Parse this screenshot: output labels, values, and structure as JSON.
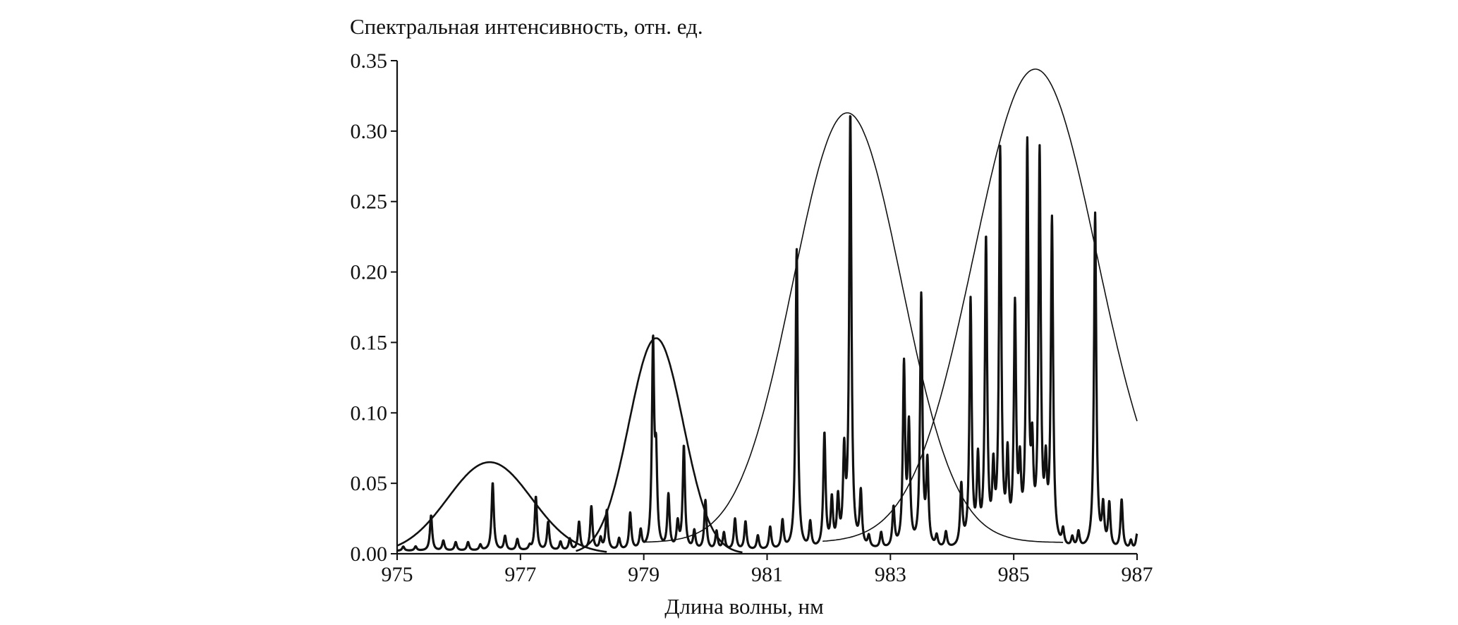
{
  "chart_data": {
    "type": "line",
    "title": "",
    "xlabel": "Длина волны, нм",
    "ylabel": "Спектральная интенсивность, отн. ед.",
    "xlim": [
      975,
      987
    ],
    "ylim": [
      0,
      0.35
    ],
    "xticks": [
      975,
      977,
      979,
      981,
      983,
      985,
      987
    ],
    "xtick_labels": [
      "975",
      "977",
      "979",
      "981",
      "983",
      "985",
      "987"
    ],
    "yticks": [
      0,
      0.05,
      0.1,
      0.15,
      0.2,
      0.25,
      0.3,
      0.35
    ],
    "ytick_labels": [
      "0.00",
      "0.05",
      "0.10",
      "0.15",
      "0.20",
      "0.25",
      "0.30",
      "0.35"
    ],
    "grid": false,
    "legend": "none",
    "series": [
      {
        "kind": "envelope",
        "style": "thick",
        "peak_wavelength": 976.5,
        "peak_value": 0.065,
        "sigma": 0.68,
        "x_range": [
          975,
          978.4
        ]
      },
      {
        "kind": "envelope",
        "style": "thick",
        "peak_wavelength": 979.2,
        "peak_value": 0.153,
        "sigma": 0.44,
        "x_range": [
          977.9,
          980.6
        ]
      },
      {
        "kind": "envelope",
        "style": "thin",
        "peak_wavelength": 982.3,
        "peak_value": 0.313,
        "sigma": 0.88,
        "baseline": 0.008,
        "x_range": [
          979.0,
          985.8
        ]
      },
      {
        "kind": "envelope",
        "style": "thin",
        "peak_wavelength": 985.35,
        "peak_value": 0.344,
        "sigma": 1.0,
        "baseline": 0.008,
        "x_range": [
          981.9,
          987.0
        ]
      },
      {
        "kind": "spectrum",
        "style": "bold",
        "baseline": 0.002,
        "lines": [
          [
            975.1,
            0.005
          ],
          [
            975.3,
            0.005
          ],
          [
            975.55,
            0.027
          ],
          [
            975.75,
            0.009
          ],
          [
            975.95,
            0.008
          ],
          [
            976.15,
            0.008
          ],
          [
            976.35,
            0.006
          ],
          [
            976.55,
            0.05
          ],
          [
            976.75,
            0.012
          ],
          [
            976.95,
            0.01
          ],
          [
            977.15,
            0.005
          ],
          [
            977.25,
            0.04
          ],
          [
            977.45,
            0.022
          ],
          [
            977.65,
            0.008
          ],
          [
            977.8,
            0.01
          ],
          [
            977.95,
            0.022
          ],
          [
            978.15,
            0.033
          ],
          [
            978.3,
            0.01
          ],
          [
            978.4,
            0.03
          ],
          [
            978.6,
            0.01
          ],
          [
            978.78,
            0.028
          ],
          [
            978.95,
            0.015
          ],
          [
            979.15,
            0.145
          ],
          [
            979.2,
            0.06
          ],
          [
            979.4,
            0.04
          ],
          [
            979.55,
            0.02
          ],
          [
            979.65,
            0.075
          ],
          [
            979.82,
            0.015
          ],
          [
            980.0,
            0.037
          ],
          [
            980.18,
            0.015
          ],
          [
            980.3,
            0.014
          ],
          [
            980.48,
            0.024
          ],
          [
            980.65,
            0.022
          ],
          [
            980.85,
            0.012
          ],
          [
            981.05,
            0.018
          ],
          [
            981.25,
            0.022
          ],
          [
            981.48,
            0.215
          ],
          [
            981.7,
            0.02
          ],
          [
            981.93,
            0.083
          ],
          [
            982.05,
            0.035
          ],
          [
            982.15,
            0.035
          ],
          [
            982.25,
            0.065
          ],
          [
            982.35,
            0.308
          ],
          [
            982.52,
            0.04
          ],
          [
            982.65,
            0.01
          ],
          [
            982.85,
            0.013
          ],
          [
            983.05,
            0.03
          ],
          [
            983.22,
            0.13
          ],
          [
            983.3,
            0.085
          ],
          [
            983.5,
            0.18
          ],
          [
            983.6,
            0.06
          ],
          [
            983.75,
            0.01
          ],
          [
            983.9,
            0.013
          ],
          [
            984.15,
            0.045
          ],
          [
            984.3,
            0.176
          ],
          [
            984.42,
            0.06
          ],
          [
            984.55,
            0.218
          ],
          [
            984.67,
            0.05
          ],
          [
            984.78,
            0.28
          ],
          [
            984.9,
            0.06
          ],
          [
            985.02,
            0.168
          ],
          [
            985.1,
            0.05
          ],
          [
            985.22,
            0.282
          ],
          [
            985.3,
            0.06
          ],
          [
            985.42,
            0.278
          ],
          [
            985.52,
            0.05
          ],
          [
            985.62,
            0.232
          ],
          [
            985.8,
            0.013
          ],
          [
            985.95,
            0.009
          ],
          [
            986.05,
            0.013
          ],
          [
            986.32,
            0.24
          ],
          [
            986.45,
            0.03
          ],
          [
            986.55,
            0.033
          ],
          [
            986.75,
            0.037
          ],
          [
            986.9,
            0.008
          ],
          [
            987.0,
            0.013
          ]
        ]
      }
    ]
  }
}
